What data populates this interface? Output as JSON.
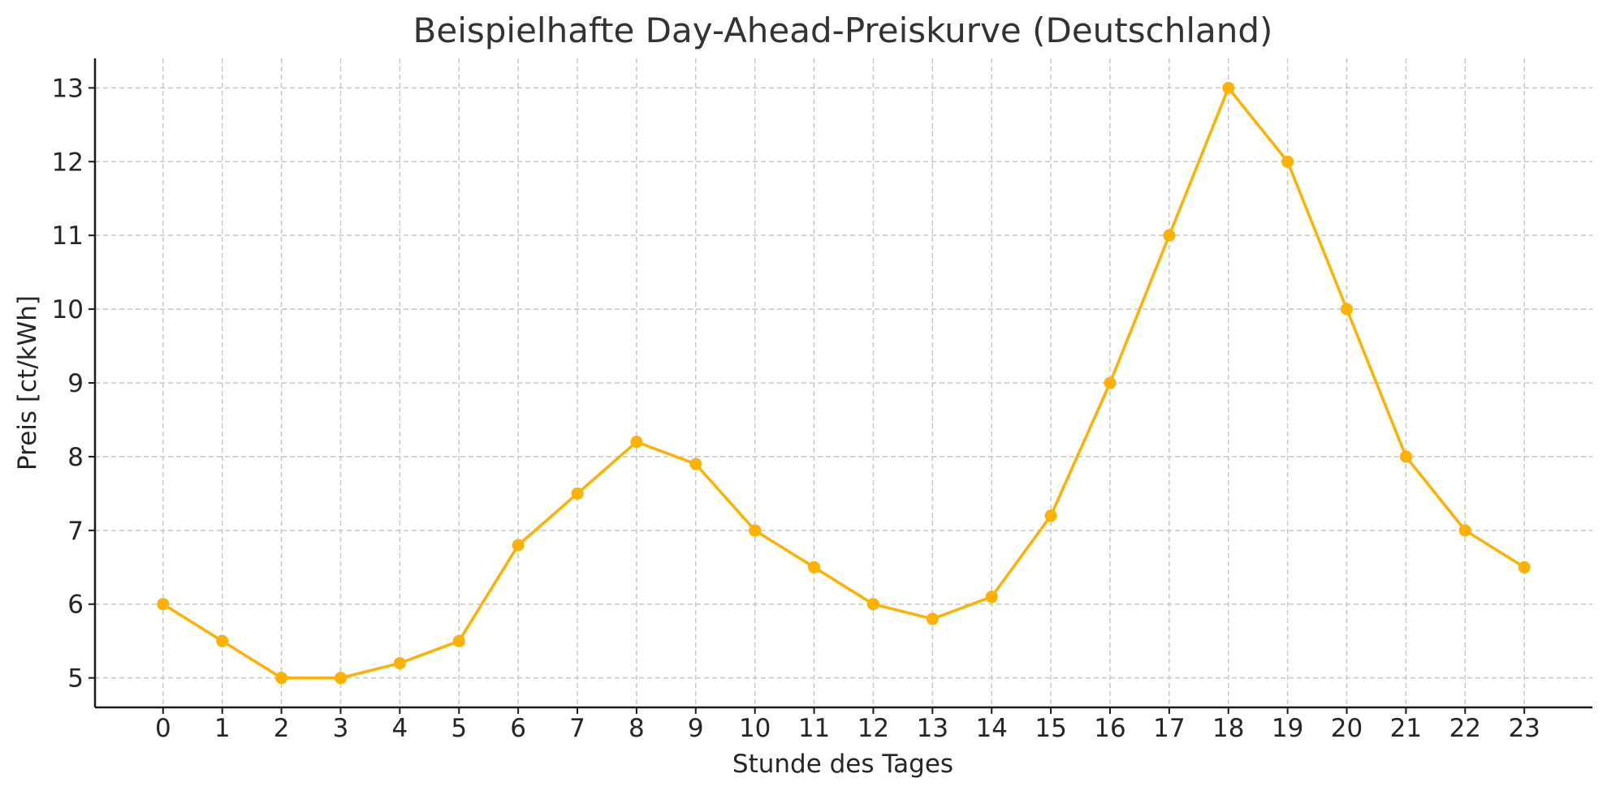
{
  "chart_data": {
    "type": "line",
    "title": "Beispielhafte Day-Ahead-Preiskurve (Deutschland)",
    "xlabel": "Stunde des Tages",
    "ylabel": "Preis [ct/kWh]",
    "x": [
      0,
      1,
      2,
      3,
      4,
      5,
      6,
      7,
      8,
      9,
      10,
      11,
      12,
      13,
      14,
      15,
      16,
      17,
      18,
      19,
      20,
      21,
      22,
      23
    ],
    "x_tick_labels": [
      "0",
      "1",
      "2",
      "3",
      "4",
      "5",
      "6",
      "7",
      "8",
      "9",
      "10",
      "11",
      "12",
      "13",
      "14",
      "15",
      "16",
      "17",
      "18",
      "19",
      "20",
      "21",
      "22",
      "23"
    ],
    "y_ticks": [
      5,
      6,
      7,
      8,
      9,
      10,
      11,
      12,
      13
    ],
    "y_tick_labels": [
      "5",
      "6",
      "7",
      "8",
      "9",
      "10",
      "11",
      "12",
      "13"
    ],
    "series": [
      {
        "values": [
          6.0,
          5.5,
          5.0,
          5.0,
          5.2,
          5.5,
          6.8,
          7.5,
          8.2,
          7.9,
          7.0,
          6.5,
          6.0,
          5.8,
          6.1,
          7.2,
          9.0,
          11.0,
          13.0,
          12.0,
          10.0,
          8.0,
          7.0,
          6.5
        ],
        "color": "#FFB000",
        "marker": "circle"
      }
    ],
    "xlim": [
      -1.15,
      24.15
    ],
    "ylim": [
      4.6,
      13.4
    ],
    "grid": true,
    "legend": "none"
  }
}
